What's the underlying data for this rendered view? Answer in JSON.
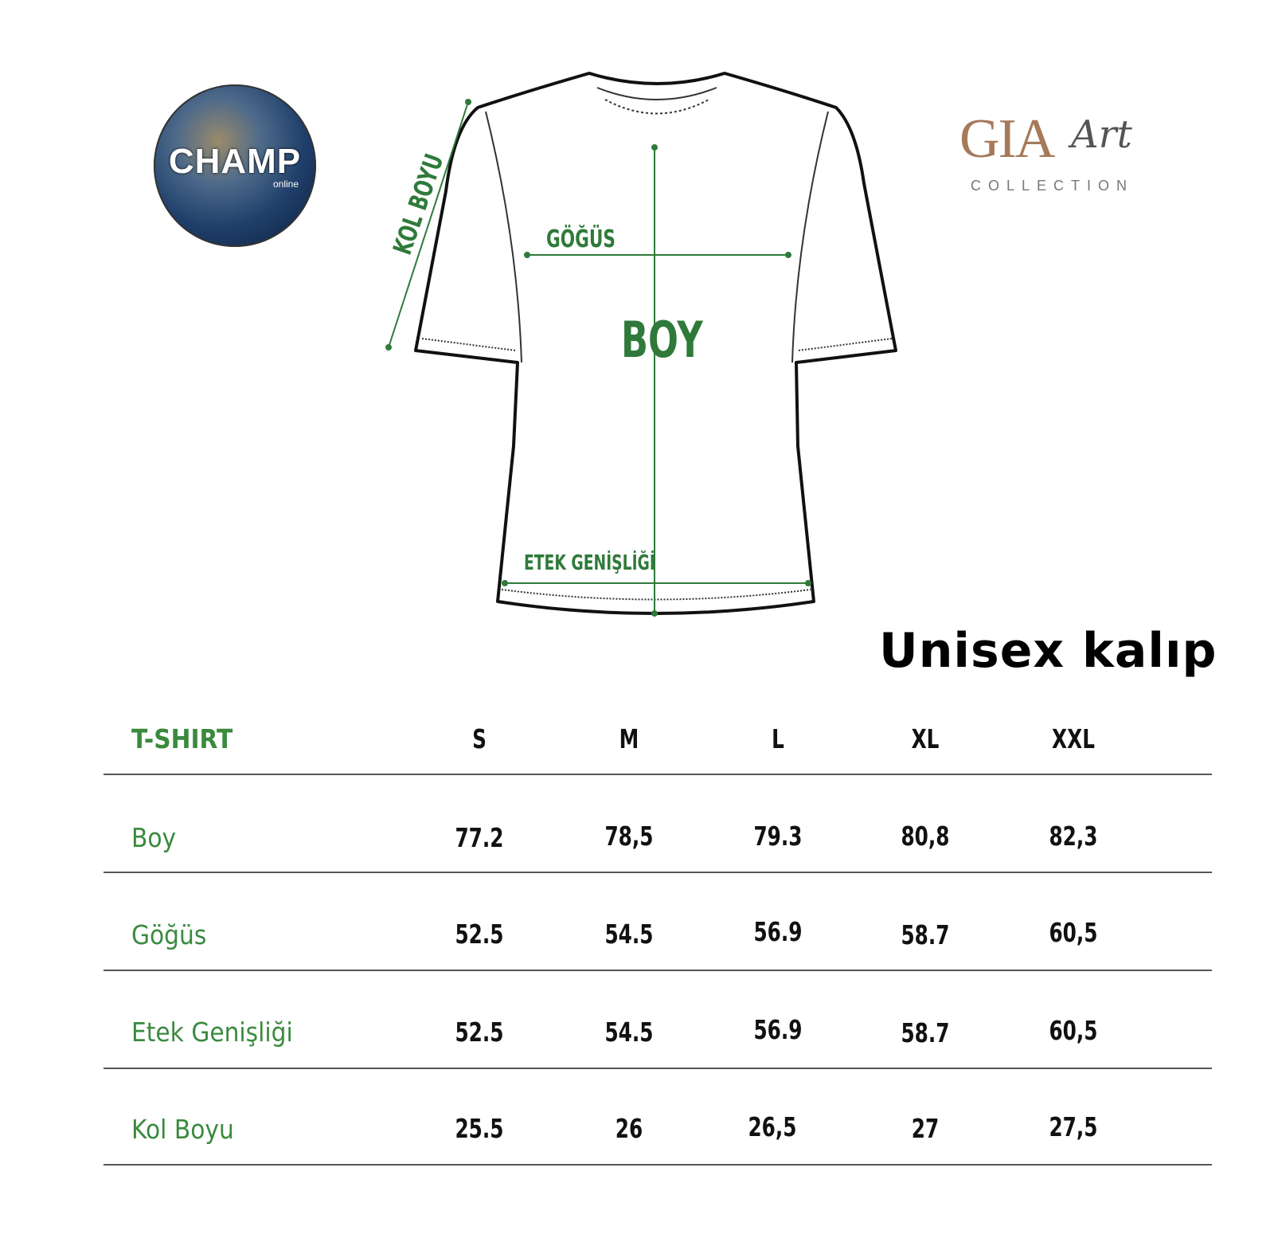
{
  "logos": {
    "left": {
      "text": "CHAMP",
      "subtext": "online"
    },
    "right": {
      "text": "GIA",
      "script": "Art",
      "subtext": "COLLECTION"
    }
  },
  "diagram": {
    "labels": {
      "sleeve": "KOL BOYU",
      "chest": "GÖĞÜS",
      "length": "BOY",
      "hem": "ETEK GENİŞLİĞİ"
    },
    "accent_color": "#2f7a3a"
  },
  "fit_label": "Unisex kalıp",
  "table": {
    "header": [
      "T-SHIRT",
      "S",
      "M",
      "L",
      "XL",
      "XXL"
    ],
    "rows": [
      {
        "label": "Boy",
        "values": [
          "77.2",
          "78,5",
          "79.3",
          "80,8",
          "82,3"
        ]
      },
      {
        "label": "Göğüs",
        "values": [
          "52.5",
          "54.5",
          "56.9",
          "58.7",
          "60,5"
        ]
      },
      {
        "label": "Etek Genişliği",
        "values": [
          "52.5",
          "54.5",
          "56.9",
          "58.7",
          "60,5"
        ]
      },
      {
        "label": "Kol Boyu",
        "values": [
          "25.5",
          "26",
          "26,5",
          "27",
          "27,5"
        ]
      }
    ]
  }
}
